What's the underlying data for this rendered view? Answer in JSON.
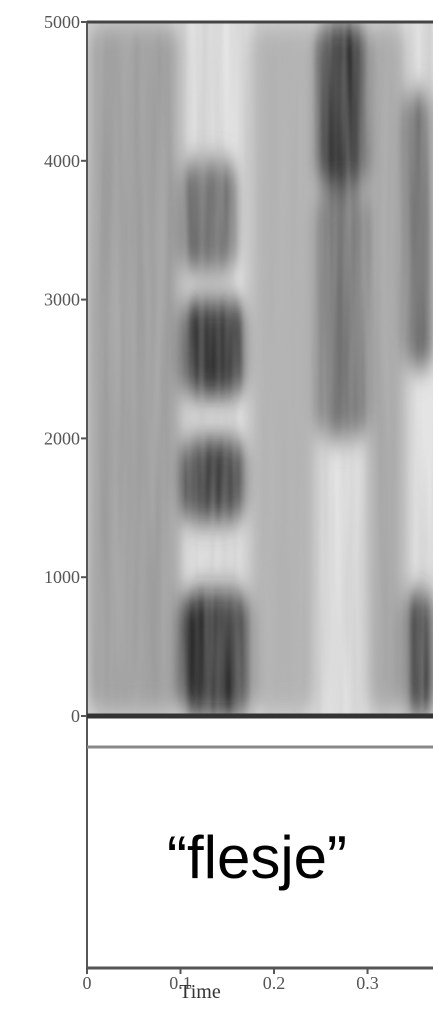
{
  "chart_data": {
    "type": "heatmap",
    "subtype": "spectrogram",
    "title": "",
    "xlabel": "Time",
    "ylabel": "",
    "xlim": [
      0,
      0.37
    ],
    "ylim": [
      0,
      5000
    ],
    "x_ticks": [
      0,
      0.1,
      0.2,
      0.3
    ],
    "x_tick_labels": [
      "0",
      "0.1",
      "0.2",
      "0.3"
    ],
    "y_ticks": [
      0,
      1000,
      2000,
      3000,
      4000,
      5000
    ],
    "y_tick_labels": [
      "0",
      "1000",
      "2000",
      "3000",
      "4000",
      "5000"
    ],
    "colormap": "grayscale (dark = high energy)",
    "energy_regions": [
      {
        "t_start": 0.0,
        "t_end": 0.1,
        "f_low": 0,
        "f_high": 5000,
        "intensity": 0.35
      },
      {
        "t_start": 0.1,
        "t_end": 0.175,
        "f_low": 0,
        "f_high": 900,
        "intensity": 0.95
      },
      {
        "t_start": 0.1,
        "t_end": 0.17,
        "f_low": 1400,
        "f_high": 2000,
        "intensity": 0.8
      },
      {
        "t_start": 0.1,
        "t_end": 0.17,
        "f_low": 2300,
        "f_high": 3000,
        "intensity": 0.85
      },
      {
        "t_start": 0.1,
        "t_end": 0.16,
        "f_low": 3200,
        "f_high": 4000,
        "intensity": 0.6
      },
      {
        "t_start": 0.175,
        "t_end": 0.245,
        "f_low": 0,
        "f_high": 5000,
        "intensity": 0.25
      },
      {
        "t_start": 0.245,
        "t_end": 0.3,
        "f_low": 3800,
        "f_high": 5000,
        "intensity": 0.9
      },
      {
        "t_start": 0.245,
        "t_end": 0.3,
        "f_low": 2000,
        "f_high": 3800,
        "intensity": 0.55
      },
      {
        "t_start": 0.3,
        "t_end": 0.34,
        "f_low": 0,
        "f_high": 5000,
        "intensity": 0.3
      },
      {
        "t_start": 0.34,
        "t_end": 0.37,
        "f_low": 0,
        "f_high": 900,
        "intensity": 0.9
      },
      {
        "t_start": 0.34,
        "t_end": 0.37,
        "f_low": 2500,
        "f_high": 4500,
        "intensity": 0.6
      }
    ]
  },
  "transcription": {
    "text": "“flesje”"
  }
}
